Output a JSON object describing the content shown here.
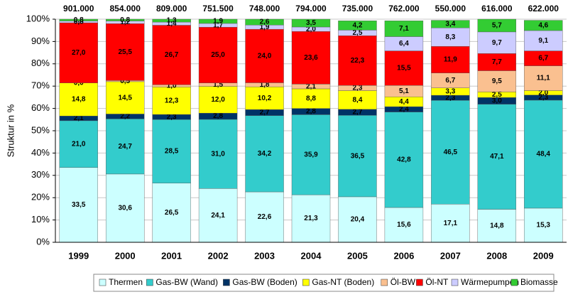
{
  "chart_data": {
    "type": "stacked_bar",
    "y_label": "Struktur in %",
    "categories": [
      "1999",
      "2000",
      "2001",
      "2002",
      "2003",
      "2004",
      "2005",
      "2006",
      "2007",
      "2008",
      "2009"
    ],
    "totals": {
      "values": [
        901000,
        854000,
        809000,
        751500,
        748000,
        794000,
        735000,
        762000,
        550000,
        616000,
        622000
      ],
      "value_labels": [
        "901.000",
        "854.000",
        "809.000",
        "751.500",
        "748.000",
        "794.000",
        "735.000",
        "762.000",
        "550.000",
        "616.000",
        "622.000"
      ]
    },
    "ylim": [
      0,
      100
    ],
    "yticks": [
      {
        "value": 0,
        "label": "0%"
      },
      {
        "value": 10,
        "label": "10%"
      },
      {
        "value": 20,
        "label": "20%"
      },
      {
        "value": 30,
        "label": "30%"
      },
      {
        "value": 40,
        "label": "40%"
      },
      {
        "value": 50,
        "label": "50%"
      },
      {
        "value": 60,
        "label": "60%"
      },
      {
        "value": 70,
        "label": "70%"
      },
      {
        "value": 80,
        "label": "80%"
      },
      {
        "value": 90,
        "label": "90%"
      },
      {
        "value": 100,
        "label": "100%"
      }
    ],
    "grid": true,
    "legend": "bottom",
    "series": [
      {
        "name": "Thermen",
        "color": "#ccffff",
        "values": [
          33.5,
          30.6,
          26.5,
          24.1,
          22.6,
          21.3,
          20.4,
          15.6,
          17.1,
          14.8,
          15.3
        ],
        "value_labels": [
          "33,5",
          "30,6",
          "26,5",
          "24,1",
          "22,6",
          "21,3",
          "20,4",
          "15,6",
          "17,1",
          "14,8",
          "15,3"
        ]
      },
      {
        "name": "Gas-BW (Wand)",
        "color": "#33cccc",
        "values": [
          21.0,
          24.7,
          28.5,
          31.0,
          34.2,
          35.9,
          36.5,
          42.8,
          46.5,
          47.1,
          48.4
        ],
        "value_labels": [
          "21,0",
          "24,7",
          "28,5",
          "31,0",
          "34,2",
          "35,9",
          "36,5",
          "42,8",
          "46,5",
          "47,1",
          "48,4"
        ]
      },
      {
        "name": "Gas-BW (Boden)",
        "color": "#003366",
        "values": [
          2.1,
          2.2,
          2.3,
          2.8,
          2.7,
          2.8,
          2.7,
          2.4,
          2.3,
          3.0,
          2.3
        ],
        "value_labels": [
          "2,1",
          "2,2",
          "2,3",
          "2,8",
          "2,7",
          "2,8",
          "2,7",
          "2,4",
          "2,3",
          "3,0",
          "2,3"
        ]
      },
      {
        "name": "Gas-NT (Boden)",
        "color": "#ffff00",
        "values": [
          14.8,
          14.5,
          12.3,
          12.0,
          10.2,
          8.8,
          8.4,
          4.4,
          3.3,
          2.5,
          2.0
        ],
        "value_labels": [
          "14,8",
          "14,5",
          "12,3",
          "12,0",
          "10,2",
          "8,8",
          "8,4",
          "4,4",
          "3,3",
          "2,5",
          "2,0"
        ]
      },
      {
        "name": "Öl-BW",
        "color": "#fac090",
        "values": [
          0.0,
          0.5,
          1.0,
          1.5,
          1.8,
          2.1,
          2.3,
          5.1,
          6.7,
          9.5,
          11.1
        ],
        "value_labels": [
          "0,0",
          "0,5",
          "1,0",
          "1,5",
          "1,8",
          "2,1",
          "2,3",
          "5,1",
          "6,7",
          "9,5",
          "11,1"
        ]
      },
      {
        "name": "Öl-NT",
        "color": "#ff0000",
        "values": [
          27.0,
          25.5,
          26.7,
          25.0,
          24.0,
          23.6,
          22.3,
          15.5,
          11.9,
          7.7,
          6.7
        ],
        "value_labels": [
          "27,0",
          "25,5",
          "26,7",
          "25,0",
          "24,0",
          "23,6",
          "22,3",
          "15,5",
          "11,9",
          "7,7",
          "6,7"
        ]
      },
      {
        "name": "Wärmepumpen",
        "color": "#ccccff",
        "values": [
          0.8,
          1.2,
          1.4,
          1.7,
          1.9,
          2.0,
          2.5,
          6.4,
          8.3,
          9.7,
          9.1
        ],
        "value_labels": [
          "0,8",
          "1,2",
          "1,4",
          "1,7",
          "1,9",
          "2,0",
          "2,5",
          "6,4",
          "8,3",
          "9,7",
          "9,1"
        ]
      },
      {
        "name": "Biomasse",
        "color": "#33cc33",
        "values": [
          0.8,
          0.8,
          1.3,
          1.9,
          2.6,
          3.5,
          4.2,
          7.1,
          3.4,
          5.7,
          4.6
        ],
        "value_labels": [
          "0,8",
          "0,8",
          "1,3",
          "1,9",
          "2,6",
          "3,5",
          "4,2",
          "7,1",
          "3,4",
          "5,7",
          "4,6"
        ]
      }
    ]
  }
}
